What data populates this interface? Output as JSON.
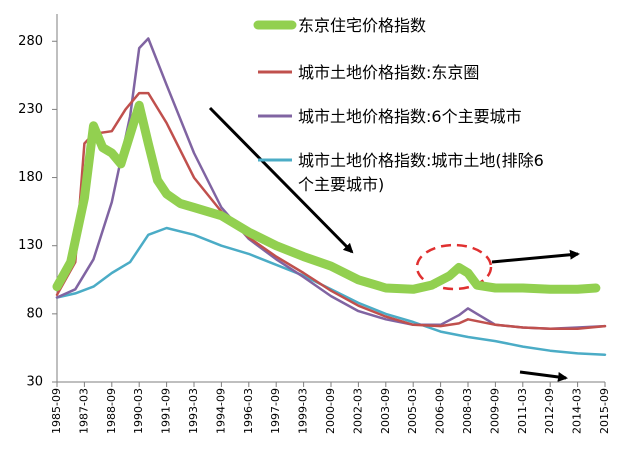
{
  "chart_data": {
    "type": "line",
    "title": "",
    "xlabel": "",
    "ylabel": "",
    "ylim": [
      30,
      300
    ],
    "yticks": [
      30,
      80,
      130,
      180,
      230,
      280
    ],
    "xticks": [
      "1985-09",
      "1987-03",
      "1988-09",
      "1990-03",
      "1991-09",
      "1993-03",
      "1994-09",
      "1996-03",
      "1997-09",
      "1999-03",
      "2000-09",
      "2002-03",
      "2003-09",
      "2005-03",
      "2006-09",
      "2008-03",
      "2009-09",
      "2011-03",
      "2012-09",
      "2014-03",
      "2015-09"
    ],
    "grid": false,
    "legend": "top-right",
    "series": [
      {
        "name": "东京住宅价格指数",
        "color": "#92d050",
        "values": [
          {
            "x": "1985-09",
            "y": 100
          },
          {
            "x": "1986-06",
            "y": 118
          },
          {
            "x": "1987-03",
            "y": 165
          },
          {
            "x": "1987-09",
            "y": 218
          },
          {
            "x": "1988-03",
            "y": 202
          },
          {
            "x": "1988-09",
            "y": 198
          },
          {
            "x": "1989-03",
            "y": 190
          },
          {
            "x": "1990-03",
            "y": 233
          },
          {
            "x": "1990-09",
            "y": 205
          },
          {
            "x": "1991-03",
            "y": 178
          },
          {
            "x": "1991-09",
            "y": 168
          },
          {
            "x": "1992-06",
            "y": 161
          },
          {
            "x": "1993-03",
            "y": 158
          },
          {
            "x": "1994-09",
            "y": 152
          },
          {
            "x": "1996-03",
            "y": 140
          },
          {
            "x": "1997-09",
            "y": 130
          },
          {
            "x": "1999-03",
            "y": 122
          },
          {
            "x": "2000-09",
            "y": 115
          },
          {
            "x": "2002-03",
            "y": 105
          },
          {
            "x": "2003-09",
            "y": 99
          },
          {
            "x": "2005-03",
            "y": 98
          },
          {
            "x": "2006-03",
            "y": 101
          },
          {
            "x": "2007-03",
            "y": 108
          },
          {
            "x": "2007-09",
            "y": 114
          },
          {
            "x": "2008-03",
            "y": 110
          },
          {
            "x": "2008-09",
            "y": 101
          },
          {
            "x": "2009-09",
            "y": 99
          },
          {
            "x": "2011-03",
            "y": 99
          },
          {
            "x": "2012-09",
            "y": 98
          },
          {
            "x": "2014-03",
            "y": 98
          },
          {
            "x": "2015-03",
            "y": 99
          }
        ]
      },
      {
        "name": "城市土地价格指数:东京圈",
        "color": "#c0504d",
        "values": [
          {
            "x": "1985-09",
            "y": 94
          },
          {
            "x": "1986-09",
            "y": 118
          },
          {
            "x": "1987-03",
            "y": 205
          },
          {
            "x": "1987-09",
            "y": 212
          },
          {
            "x": "1988-09",
            "y": 214
          },
          {
            "x": "1989-06",
            "y": 230
          },
          {
            "x": "1990-03",
            "y": 242
          },
          {
            "x": "1990-09",
            "y": 242
          },
          {
            "x": "1991-09",
            "y": 220
          },
          {
            "x": "1993-03",
            "y": 180
          },
          {
            "x": "1994-09",
            "y": 155
          },
          {
            "x": "1996-03",
            "y": 136
          },
          {
            "x": "1997-09",
            "y": 122
          },
          {
            "x": "1999-03",
            "y": 110
          },
          {
            "x": "2000-09",
            "y": 97
          },
          {
            "x": "2002-03",
            "y": 86
          },
          {
            "x": "2003-09",
            "y": 78
          },
          {
            "x": "2005-03",
            "y": 72
          },
          {
            "x": "2006-09",
            "y": 71
          },
          {
            "x": "2007-09",
            "y": 73
          },
          {
            "x": "2008-03",
            "y": 76
          },
          {
            "x": "2009-09",
            "y": 72
          },
          {
            "x": "2011-03",
            "y": 70
          },
          {
            "x": "2012-09",
            "y": 69
          },
          {
            "x": "2014-03",
            "y": 69
          },
          {
            "x": "2015-09",
            "y": 71
          }
        ]
      },
      {
        "name": "城市土地价格指数:6个主要城市",
        "color": "#8064a2",
        "values": [
          {
            "x": "1985-09",
            "y": 92
          },
          {
            "x": "1986-09",
            "y": 98
          },
          {
            "x": "1987-09",
            "y": 120
          },
          {
            "x": "1988-09",
            "y": 162
          },
          {
            "x": "1989-09",
            "y": 225
          },
          {
            "x": "1990-03",
            "y": 275
          },
          {
            "x": "1990-09",
            "y": 282
          },
          {
            "x": "1991-09",
            "y": 248
          },
          {
            "x": "1993-03",
            "y": 198
          },
          {
            "x": "1994-09",
            "y": 158
          },
          {
            "x": "1996-03",
            "y": 135
          },
          {
            "x": "1997-09",
            "y": 120
          },
          {
            "x": "1999-03",
            "y": 107
          },
          {
            "x": "2000-09",
            "y": 93
          },
          {
            "x": "2002-03",
            "y": 82
          },
          {
            "x": "2003-09",
            "y": 76
          },
          {
            "x": "2005-03",
            "y": 72
          },
          {
            "x": "2006-09",
            "y": 72
          },
          {
            "x": "2007-09",
            "y": 79
          },
          {
            "x": "2008-03",
            "y": 84
          },
          {
            "x": "2008-09",
            "y": 80
          },
          {
            "x": "2009-09",
            "y": 72
          },
          {
            "x": "2011-03",
            "y": 70
          },
          {
            "x": "2012-09",
            "y": 69
          },
          {
            "x": "2014-03",
            "y": 70
          },
          {
            "x": "2015-09",
            "y": 71
          }
        ]
      },
      {
        "name": "城市土地价格指数:城市土地(排除6个主要城市)",
        "color": "#4bacc6",
        "values": [
          {
            "x": "1985-09",
            "y": 92
          },
          {
            "x": "1986-09",
            "y": 95
          },
          {
            "x": "1987-09",
            "y": 100
          },
          {
            "x": "1988-09",
            "y": 110
          },
          {
            "x": "1989-09",
            "y": 118
          },
          {
            "x": "1990-09",
            "y": 138
          },
          {
            "x": "1991-09",
            "y": 143
          },
          {
            "x": "1993-03",
            "y": 138
          },
          {
            "x": "1994-09",
            "y": 130
          },
          {
            "x": "1996-03",
            "y": 124
          },
          {
            "x": "1997-09",
            "y": 116
          },
          {
            "x": "1999-03",
            "y": 108
          },
          {
            "x": "2000-09",
            "y": 98
          },
          {
            "x": "2002-03",
            "y": 88
          },
          {
            "x": "2003-09",
            "y": 80
          },
          {
            "x": "2005-03",
            "y": 74
          },
          {
            "x": "2006-09",
            "y": 67
          },
          {
            "x": "2008-03",
            "y": 63
          },
          {
            "x": "2009-09",
            "y": 60
          },
          {
            "x": "2011-03",
            "y": 56
          },
          {
            "x": "2012-09",
            "y": 53
          },
          {
            "x": "2014-03",
            "y": 51
          },
          {
            "x": "2015-09",
            "y": 50
          }
        ]
      }
    ],
    "legend_lines": [
      [
        "东京住宅价格指数"
      ],
      [
        "城市土地价格指数:东京圈"
      ],
      [
        "城市土地价格指数:6个主要城市"
      ],
      [
        "城市土地价格指数:城市土地(排除6",
        "个主要城市)"
      ]
    ],
    "annotations": [
      "arrow-down-trend",
      "arrow-right-upper",
      "arrow-right-lower",
      "dashed-ellipse-2007-peak"
    ]
  }
}
